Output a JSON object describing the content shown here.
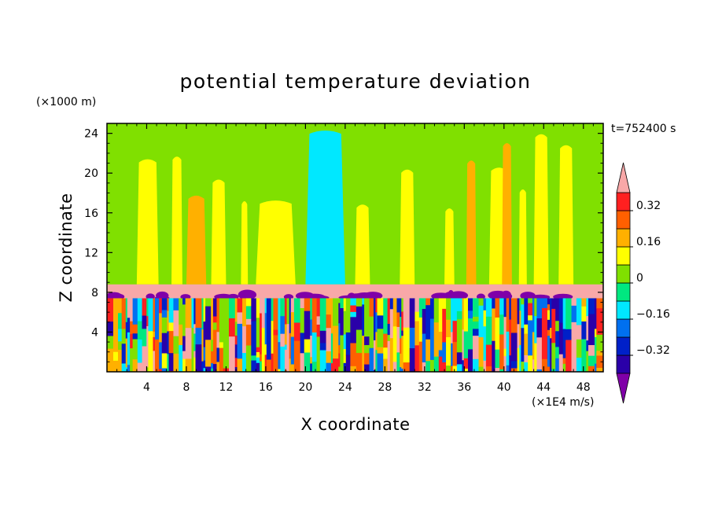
{
  "chart_data": {
    "type": "heatmap",
    "title": "potential temperature deviation",
    "time_label": "t=752400 s",
    "xlabel": "X coordinate",
    "ylabel": "Z coordinate",
    "x_unit": "(×1E4 m/s)",
    "y_unit": "(×1000 m)",
    "xlim": [
      0,
      50
    ],
    "ylim": [
      0,
      25
    ],
    "x_ticks": [
      4,
      8,
      12,
      16,
      20,
      24,
      28,
      32,
      36,
      40,
      44,
      48
    ],
    "y_ticks": [
      4,
      8,
      12,
      16,
      20,
      24
    ],
    "x_tick_labels": [
      "4",
      "8",
      "12",
      "16",
      "20",
      "24",
      "28",
      "32",
      "36",
      "40",
      "44",
      "48"
    ],
    "y_tick_labels": [
      "4",
      "8",
      "12",
      "16",
      "20",
      "24"
    ],
    "colorbar": {
      "levels": [
        -0.4,
        -0.32,
        -0.24,
        -0.16,
        -0.08,
        0,
        0.08,
        0.16,
        0.24,
        0.32,
        0.4
      ],
      "colors": [
        "#8000a8",
        "#2a00a8",
        "#0020c8",
        "#0070f0",
        "#00e8ff",
        "#00e880",
        "#80e000",
        "#ffff00",
        "#ffb000",
        "#ff6000",
        "#ff2020",
        "#f8a8a8"
      ],
      "tick_values": [
        -0.32,
        -0.16,
        0,
        0.16,
        0.32
      ],
      "tick_labels": [
        "−0.32",
        "−0.16",
        "0",
        "0.16",
        "0.32"
      ]
    },
    "regions": {
      "upper_background_value": 0.0,
      "stable_layer_z": [
        7.4,
        8.8
      ],
      "stable_layer_value": 0.44,
      "turbulent_layer_z": [
        0,
        7.4
      ]
    }
  }
}
